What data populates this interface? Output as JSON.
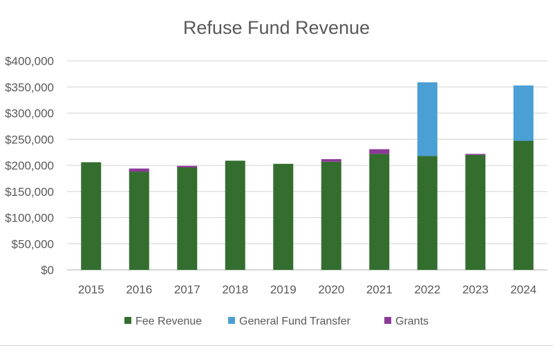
{
  "chart_data": {
    "type": "bar",
    "stacked": true,
    "title": "Refuse Fund Revenue",
    "xlabel": "",
    "ylabel": "",
    "categories": [
      "2015",
      "2016",
      "2017",
      "2018",
      "2019",
      "2020",
      "2021",
      "2022",
      "2023",
      "2024"
    ],
    "series": [
      {
        "name": "Fee Revenue",
        "color": "#336e2e",
        "values": [
          206000,
          188000,
          196000,
          209000,
          203000,
          207000,
          222000,
          218000,
          220000,
          247000
        ]
      },
      {
        "name": "General Fund Transfer",
        "color": "#4a9fd4",
        "values": [
          0,
          0,
          0,
          0,
          0,
          0,
          0,
          141000,
          0,
          106000
        ]
      },
      {
        "name": "Grants",
        "color": "#8b3a97",
        "values": [
          0,
          6000,
          3000,
          0,
          0,
          5000,
          9000,
          0,
          2000,
          0
        ]
      }
    ],
    "ylim": [
      0,
      400000
    ],
    "yticks": [
      0,
      50000,
      100000,
      150000,
      200000,
      250000,
      300000,
      350000,
      400000
    ],
    "ytick_labels": [
      "$0",
      "$50,000",
      "$100,000",
      "$150,000",
      "$200,000",
      "$250,000",
      "$300,000",
      "$350,000",
      "$400,000"
    ],
    "grid": true,
    "legend_position": "bottom"
  }
}
